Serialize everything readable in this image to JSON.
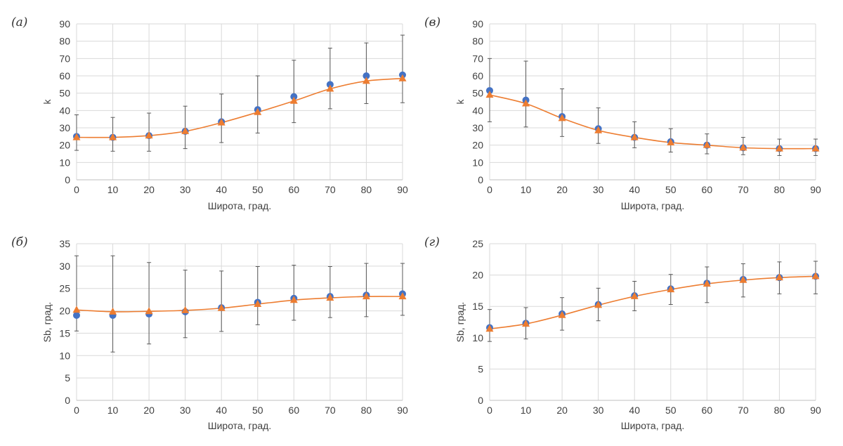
{
  "colors": {
    "observed": "#4472c4",
    "model": "#ed7d31",
    "error_bar": "#595959"
  },
  "chart_data": [
    {
      "panel": "(а)",
      "type": "line",
      "xlabel": "Широта, град.",
      "ylabel": "k",
      "xlim": [
        0,
        90
      ],
      "ylim": [
        0,
        90
      ],
      "xticks": [
        "0",
        "10",
        "20",
        "30",
        "40",
        "50",
        "60",
        "70",
        "80",
        "90"
      ],
      "yticks": [
        "0",
        "10",
        "20",
        "30",
        "40",
        "50",
        "60",
        "70",
        "80",
        "90"
      ],
      "x": [
        0,
        10,
        20,
        30,
        40,
        50,
        60,
        70,
        80,
        90
      ],
      "series": [
        {
          "marker": "circle",
          "values": [
            25,
            24.5,
            25.5,
            28,
            33.5,
            40.5,
            48,
            55,
            60,
            60.5
          ],
          "err_low": [
            17,
            16.5,
            16.5,
            18,
            21.5,
            27,
            33,
            41,
            44,
            44.5
          ],
          "err_high": [
            37.5,
            36,
            38.5,
            42.5,
            49.5,
            60,
            69,
            76,
            79,
            83.5
          ]
        },
        {
          "marker": "triangle",
          "line": true,
          "values": [
            24.5,
            24.5,
            25.5,
            28,
            33,
            39,
            45.5,
            52.5,
            57,
            58.5
          ]
        }
      ]
    },
    {
      "panel": "(в)",
      "type": "line",
      "xlabel": "Широта, град.",
      "ylabel": "k",
      "xlim": [
        0,
        90
      ],
      "ylim": [
        0,
        90
      ],
      "xticks": [
        "0",
        "10",
        "20",
        "30",
        "40",
        "50",
        "60",
        "70",
        "80",
        "90"
      ],
      "yticks": [
        "0",
        "10",
        "20",
        "30",
        "40",
        "50",
        "60",
        "70",
        "80",
        "90"
      ],
      "x": [
        0,
        10,
        20,
        30,
        40,
        50,
        60,
        70,
        80,
        90
      ],
      "series": [
        {
          "marker": "circle",
          "values": [
            51.5,
            46,
            36.5,
            29.5,
            24.5,
            22,
            20,
            18.5,
            18,
            18
          ],
          "err_low": [
            33.5,
            30.5,
            25,
            21,
            18.5,
            16,
            15,
            14.5,
            14,
            14
          ],
          "err_high": [
            70,
            68.5,
            52.5,
            41.5,
            33.5,
            29.5,
            26.5,
            24.5,
            23.5,
            23.5
          ]
        },
        {
          "marker": "triangle",
          "line": true,
          "values": [
            49,
            44,
            35.5,
            28.5,
            24.5,
            21.5,
            20,
            18.5,
            18,
            18
          ]
        }
      ]
    },
    {
      "panel": "(б)",
      "type": "line",
      "xlabel": "Широта, град.",
      "ylabel": "Sb, град.",
      "xlim": [
        0,
        90
      ],
      "ylim": [
        0,
        35
      ],
      "xticks": [
        "0",
        "10",
        "20",
        "30",
        "40",
        "50",
        "60",
        "70",
        "80",
        "90"
      ],
      "yticks": [
        "0",
        "5",
        "10",
        "15",
        "20",
        "25",
        "30",
        "35"
      ],
      "x": [
        0,
        10,
        20,
        30,
        40,
        50,
        60,
        70,
        80,
        90
      ],
      "series": [
        {
          "marker": "circle",
          "values": [
            19,
            19,
            19.3,
            19.8,
            20.7,
            21.9,
            22.8,
            23.2,
            23.5,
            23.8
          ],
          "err_low": [
            15.5,
            10.8,
            12.6,
            14,
            15.4,
            16.9,
            17.9,
            18.5,
            18.7,
            19
          ],
          "err_high": [
            32.3,
            32.3,
            30.8,
            29.1,
            28.9,
            29.9,
            30.2,
            29.9,
            30.6,
            30.6
          ]
        },
        {
          "marker": "triangle",
          "line": true,
          "values": [
            20.2,
            19.8,
            19.9,
            20.1,
            20.6,
            21.5,
            22.4,
            22.9,
            23.2,
            23.2
          ]
        }
      ]
    },
    {
      "panel": "(г)",
      "type": "line",
      "xlabel": "Широта, град.",
      "ylabel": "Sb, град.",
      "xlim": [
        0,
        90
      ],
      "ylim": [
        0,
        25
      ],
      "xticks": [
        "0",
        "10",
        "20",
        "30",
        "40",
        "50",
        "60",
        "70",
        "80",
        "90"
      ],
      "yticks": [
        "0",
        "5",
        "10",
        "15",
        "20",
        "25"
      ],
      "x": [
        0,
        10,
        20,
        30,
        40,
        50,
        60,
        70,
        80,
        90
      ],
      "series": [
        {
          "marker": "circle",
          "values": [
            11.6,
            12.3,
            13.8,
            15.3,
            16.7,
            17.8,
            18.7,
            19.3,
            19.6,
            19.8
          ],
          "err_low": [
            9.4,
            9.8,
            11.2,
            12.7,
            14.3,
            15.3,
            15.6,
            16.5,
            17,
            17
          ],
          "err_high": [
            14.5,
            14.8,
            16.4,
            17.9,
            19,
            20.1,
            21.3,
            21.8,
            22.1,
            22.2
          ]
        },
        {
          "marker": "triangle",
          "line": true,
          "values": [
            11.4,
            12.2,
            13.6,
            15.2,
            16.6,
            17.7,
            18.6,
            19.2,
            19.6,
            19.8
          ]
        }
      ]
    }
  ]
}
